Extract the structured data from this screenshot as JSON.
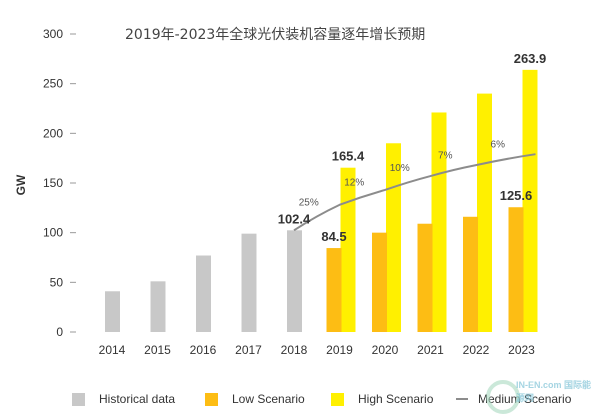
{
  "chart_data": {
    "type": "bar",
    "title": "2019年-2023年全球光伏装机容量逐年增长预期",
    "xlabel": "",
    "ylabel": "GW",
    "ylim": [
      0,
      300
    ],
    "yticks": [
      0,
      50,
      100,
      150,
      200,
      250,
      300
    ],
    "grid": false,
    "legend_position": "bottom",
    "categories": [
      "2014",
      "2015",
      "2016",
      "2017",
      "2018",
      "2019",
      "2020",
      "2021",
      "2022",
      "2023"
    ],
    "series": [
      {
        "name": "Historical data",
        "type": "bar",
        "color": "#c8c8c8",
        "values": [
          41,
          51,
          77,
          99,
          102.4,
          null,
          null,
          null,
          null,
          null
        ]
      },
      {
        "name": "Low Scenario",
        "type": "bar",
        "color": "#fdbd14",
        "values": [
          null,
          null,
          null,
          null,
          null,
          84.5,
          100,
          109,
          116,
          125.6
        ]
      },
      {
        "name": "High Scenario",
        "type": "bar",
        "color": "#fff000",
        "values": [
          null,
          null,
          null,
          null,
          null,
          165.4,
          190,
          221,
          240,
          263.9
        ]
      },
      {
        "name": "Medium Scenario",
        "type": "line",
        "color": "#8c8c8c",
        "values": [
          null,
          null,
          null,
          null,
          102.4,
          128,
          143,
          157,
          168,
          179
        ]
      }
    ],
    "data_labels": [
      {
        "category": "2018",
        "series": "Historical data",
        "text": "102.4"
      },
      {
        "category": "2019",
        "series": "Low Scenario",
        "text": "84.5"
      },
      {
        "category": "2019",
        "series": "High Scenario",
        "text": "165.4"
      },
      {
        "category": "2023",
        "series": "Low Scenario",
        "text": "125.6"
      },
      {
        "category": "2023",
        "series": "High Scenario",
        "text": "263.9"
      }
    ],
    "growth_annotations": [
      {
        "between": [
          "2018",
          "2019"
        ],
        "text": "25%"
      },
      {
        "between": [
          "2019",
          "2020"
        ],
        "text": "12%"
      },
      {
        "between": [
          "2020",
          "2021"
        ],
        "text": "10%"
      },
      {
        "between": [
          "2021",
          "2022"
        ],
        "text": "7%"
      },
      {
        "between": [
          "2022",
          "2023"
        ],
        "text": "6%"
      }
    ]
  },
  "legend": [
    {
      "label": "Historical data",
      "kind": "swatch",
      "color": "#c8c8c8"
    },
    {
      "label": "Low Scenario",
      "kind": "swatch",
      "color": "#fdbd14"
    },
    {
      "label": "High Scenario",
      "kind": "swatch",
      "color": "#fff000"
    },
    {
      "label": "Medium Scenario",
      "kind": "line",
      "color": "#8c8c8c"
    }
  ],
  "watermark": {
    "text": "IN-EN.com 国际能源网"
  }
}
